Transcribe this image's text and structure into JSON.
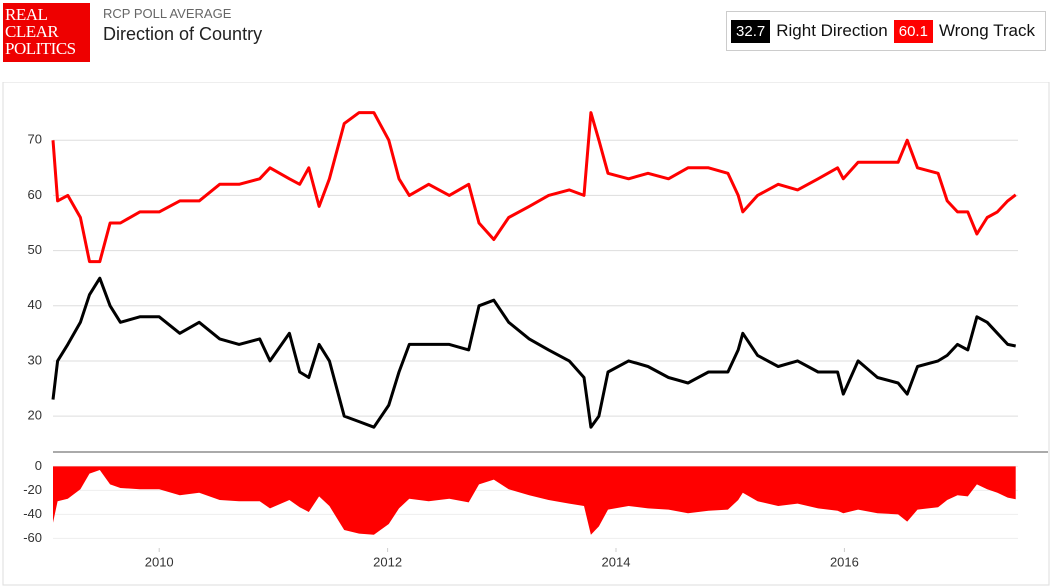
{
  "header": {
    "logo": [
      "REAL",
      "CLEAR",
      "POLITICS"
    ],
    "supertitle": "RCP POLL AVERAGE"
  },
  "chart_data": [
    {
      "type": "line",
      "title": "Direction of Country",
      "x": [
        2009.07,
        2009.11,
        2009.2,
        2009.31,
        2009.39,
        2009.48,
        2009.57,
        2009.66,
        2009.83,
        2010.0,
        2010.18,
        2010.35,
        2010.53,
        2010.7,
        2010.88,
        2010.97,
        2011.14,
        2011.23,
        2011.31,
        2011.4,
        2011.49,
        2011.62,
        2011.75,
        2011.88,
        2012.01,
        2012.1,
        2012.19,
        2012.36,
        2012.54,
        2012.71,
        2012.8,
        2012.93,
        2013.06,
        2013.24,
        2013.41,
        2013.59,
        2013.72,
        2013.78,
        2013.85,
        2013.93,
        2014.11,
        2014.28,
        2014.46,
        2014.63,
        2014.81,
        2014.98,
        2015.07,
        2015.11,
        2015.24,
        2015.42,
        2015.59,
        2015.77,
        2015.94,
        2015.99,
        2016.12,
        2016.29,
        2016.47,
        2016.55,
        2016.64,
        2016.82,
        2016.9,
        2016.99,
        2017.08,
        2017.16,
        2017.25,
        2017.34,
        2017.43,
        2017.5
      ],
      "series": [
        {
          "name": "Right Direction",
          "color": "#000000",
          "latest": 32.7,
          "values": [
            23,
            30,
            33,
            37,
            42,
            45,
            40,
            37,
            38,
            38,
            35,
            37,
            34,
            33,
            34,
            30,
            35,
            28,
            27,
            33,
            30,
            20,
            19,
            18,
            22,
            28,
            33,
            33,
            33,
            32,
            40,
            41,
            37,
            34,
            32,
            30,
            27,
            18,
            20,
            28,
            30,
            29,
            27,
            26,
            28,
            28,
            32,
            35,
            31,
            29,
            30,
            28,
            28,
            24,
            30,
            27,
            26,
            24,
            29,
            30,
            31,
            33,
            32,
            38,
            37,
            35,
            33,
            32.7
          ]
        },
        {
          "name": "Wrong Track",
          "color": "#ff0000",
          "latest": 60.1,
          "values": [
            70,
            59,
            60,
            56,
            48,
            48,
            55,
            55,
            57,
            57,
            59,
            59,
            62,
            62,
            63,
            65,
            63,
            62,
            65,
            58,
            63,
            73,
            75,
            75,
            70,
            63,
            60,
            62,
            60,
            62,
            55,
            52,
            56,
            58,
            60,
            61,
            60,
            75,
            70,
            64,
            63,
            64,
            63,
            65,
            65,
            64,
            60,
            57,
            60,
            62,
            61,
            63,
            65,
            63,
            66,
            66,
            66,
            70,
            65,
            64,
            59,
            57,
            57,
            53,
            56,
            57,
            59,
            60.1
          ]
        }
      ],
      "xlim": [
        2009.07,
        2017.52
      ],
      "ylim": [
        13.5,
        80
      ],
      "yticks": [
        20,
        30,
        40,
        50,
        60,
        70
      ],
      "grid": true
    },
    {
      "type": "area",
      "color": "#ff0000",
      "x": [
        2009.07,
        2009.11,
        2009.2,
        2009.31,
        2009.39,
        2009.48,
        2009.57,
        2009.66,
        2009.83,
        2010.0,
        2010.18,
        2010.35,
        2010.53,
        2010.7,
        2010.88,
        2010.97,
        2011.14,
        2011.23,
        2011.31,
        2011.4,
        2011.49,
        2011.62,
        2011.75,
        2011.88,
        2012.01,
        2012.1,
        2012.19,
        2012.36,
        2012.54,
        2012.71,
        2012.8,
        2012.93,
        2013.06,
        2013.24,
        2013.41,
        2013.59,
        2013.72,
        2013.78,
        2013.85,
        2013.93,
        2014.11,
        2014.28,
        2014.46,
        2014.63,
        2014.81,
        2014.98,
        2015.07,
        2015.11,
        2015.24,
        2015.42,
        2015.59,
        2015.77,
        2015.94,
        2015.99,
        2016.12,
        2016.29,
        2016.47,
        2016.55,
        2016.64,
        2016.82,
        2016.9,
        2016.99,
        2017.08,
        2017.16,
        2017.25,
        2017.34,
        2017.43,
        2017.5
      ],
      "values": [
        -47,
        -29,
        -27,
        -19,
        -6,
        -3,
        -15,
        -18,
        -19,
        -19,
        -24,
        -22,
        -28,
        -29,
        -29,
        -35,
        -28,
        -34,
        -38,
        -25,
        -33,
        -53,
        -56,
        -57,
        -48,
        -35,
        -27,
        -29,
        -27,
        -30,
        -15,
        -11,
        -19,
        -24,
        -28,
        -31,
        -33,
        -57,
        -50,
        -36,
        -33,
        -35,
        -36,
        -39,
        -37,
        -36,
        -28,
        -22,
        -29,
        -33,
        -31,
        -35,
        -37,
        -39,
        -36,
        -39,
        -40,
        -46,
        -36,
        -34,
        -28,
        -24,
        -25,
        -15,
        -19,
        -22,
        -26,
        -27.4
      ],
      "xlim": [
        2009.07,
        2017.52
      ],
      "ylim": [
        -68,
        7
      ],
      "yticks": [
        -60,
        -40,
        -20,
        0
      ],
      "xticks": [
        2010,
        2012,
        2014,
        2016
      ]
    }
  ]
}
